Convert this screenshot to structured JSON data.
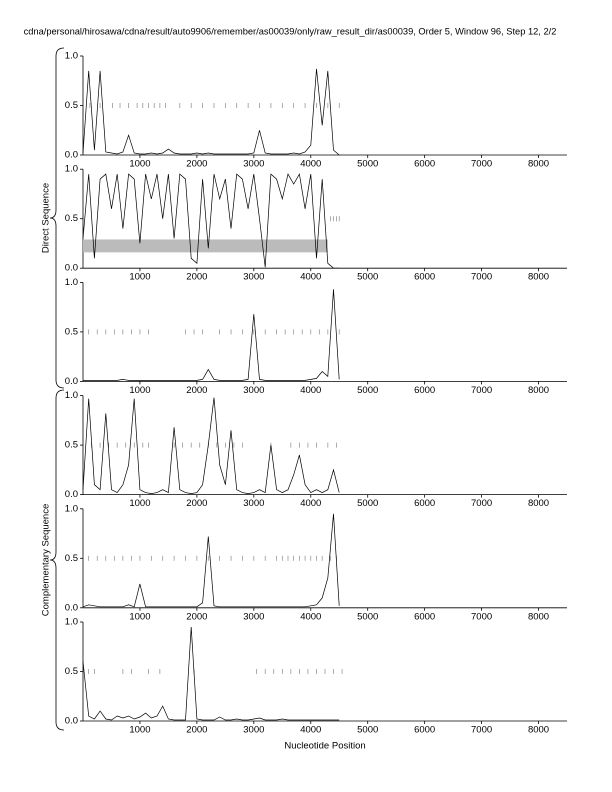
{
  "title": "cdna/personal/hirosawa/cdna/result/auto9906/remember/as00039/only/raw_result_dir/as00039, Order 5, Window 96, Step 12, 2/2",
  "xlabel": "Nucleotide Position",
  "groups": [
    {
      "label": "Direct Sequence"
    },
    {
      "label": "Complementary Sequence"
    }
  ],
  "chart_data": [
    {
      "type": "line",
      "color": "#000000",
      "x": [
        0,
        100,
        200,
        300,
        400,
        500,
        600,
        700,
        800,
        900,
        1000,
        1100,
        1200,
        1300,
        1400,
        1500,
        1600,
        1700,
        1800,
        1900,
        2000,
        2100,
        2200,
        2300,
        2400,
        2500,
        2600,
        2700,
        2800,
        2900,
        3000,
        3100,
        3200,
        3300,
        3400,
        3500,
        3600,
        3700,
        3800,
        3900,
        4000,
        4100,
        4200,
        4300,
        4400,
        4500
      ],
      "values": [
        0.02,
        0.85,
        0.05,
        0.85,
        0.03,
        0.02,
        0.01,
        0.03,
        0.2,
        0.02,
        0.01,
        0.01,
        0.02,
        0.01,
        0.02,
        0.06,
        0.02,
        0.01,
        0.01,
        0.01,
        0.02,
        0.01,
        0.02,
        0.01,
        0.01,
        0.01,
        0.01,
        0.01,
        0.01,
        0.01,
        0.02,
        0.25,
        0.02,
        0.01,
        0.01,
        0.01,
        0.01,
        0.02,
        0.01,
        0.03,
        0.1,
        0.87,
        0.3,
        0.85,
        0.05,
        0
      ],
      "rug": [
        120,
        300,
        520,
        650,
        800,
        950,
        1050,
        1150,
        1250,
        1350,
        1450,
        1700,
        1900,
        2100,
        2300,
        2500,
        2700,
        2900,
        3100,
        3300,
        3500,
        3700,
        3900,
        4100,
        4300,
        4500
      ],
      "xlim": [
        0,
        8500
      ],
      "ylim": [
        0,
        1
      ],
      "xticks": [
        1000,
        2000,
        3000,
        4000,
        5000,
        6000,
        7000,
        8000
      ],
      "yticks": [
        {
          "value": 0,
          "label": "0.0"
        },
        {
          "value": 0.5,
          "label": "0.5"
        },
        {
          "value": 1,
          "label": "1.0"
        }
      ]
    },
    {
      "type": "line",
      "color": "#000000",
      "x": [
        0,
        100,
        200,
        300,
        400,
        500,
        600,
        700,
        800,
        900,
        1000,
        1100,
        1200,
        1300,
        1400,
        1500,
        1600,
        1700,
        1800,
        1900,
        2000,
        2100,
        2200,
        2300,
        2400,
        2500,
        2600,
        2700,
        2800,
        2900,
        3000,
        3100,
        3200,
        3300,
        3400,
        3500,
        3600,
        3700,
        3800,
        3900,
        4000,
        4100,
        4200,
        4300,
        4400,
        4500
      ],
      "values": [
        0.3,
        0.95,
        0.1,
        0.9,
        0.95,
        0.6,
        0.95,
        0.4,
        0.95,
        0.9,
        0.25,
        0.95,
        0.7,
        0.95,
        0.5,
        0.95,
        0.3,
        0.95,
        0.9,
        0.1,
        0.05,
        0.9,
        0.2,
        0.95,
        0.7,
        0.9,
        0.4,
        0.95,
        0.9,
        0.6,
        0.95,
        0.5,
        0.01,
        0.95,
        0.9,
        0.7,
        0.95,
        0.85,
        0.95,
        0.6,
        0.95,
        0.1,
        0.9,
        0.05,
        0,
        0
      ],
      "rug": [
        4350,
        4400,
        4450,
        4500
      ],
      "band_x": [
        0,
        4300
      ],
      "band_y": [
        0.16,
        0.29
      ],
      "band_color": "#bbbbbb",
      "xlim": [
        0,
        8500
      ],
      "ylim": [
        0,
        1
      ],
      "xticks": [
        1000,
        2000,
        3000,
        4000,
        5000,
        6000,
        7000,
        8000
      ],
      "yticks": [
        {
          "value": 0,
          "label": "0.0"
        },
        {
          "value": 0.5,
          "label": "0.5"
        },
        {
          "value": 1,
          "label": "1.0"
        }
      ]
    },
    {
      "type": "line",
      "color": "#000000",
      "x": [
        0,
        100,
        200,
        300,
        400,
        500,
        600,
        700,
        800,
        900,
        1000,
        1100,
        1200,
        1300,
        1400,
        1500,
        1600,
        1700,
        1800,
        1900,
        2000,
        2100,
        2200,
        2300,
        2400,
        2500,
        2600,
        2700,
        2800,
        2900,
        3000,
        3100,
        3200,
        3300,
        3400,
        3500,
        3600,
        3700,
        3800,
        3900,
        4000,
        4100,
        4200,
        4300,
        4400,
        4500
      ],
      "values": [
        0.01,
        0.01,
        0.01,
        0.01,
        0.01,
        0.01,
        0.01,
        0.02,
        0.01,
        0.01,
        0.01,
        0.01,
        0.01,
        0.01,
        0.01,
        0.01,
        0.01,
        0.01,
        0.01,
        0.01,
        0.01,
        0.02,
        0.12,
        0.02,
        0.01,
        0.01,
        0.01,
        0.01,
        0.01,
        0.02,
        0.68,
        0.02,
        0.01,
        0.01,
        0.01,
        0.01,
        0.01,
        0.01,
        0.01,
        0.01,
        0.02,
        0.03,
        0.1,
        0.05,
        0.93,
        0.02
      ],
      "rug": [
        100,
        250,
        400,
        550,
        700,
        850,
        1000,
        1150,
        1800,
        1950,
        2100,
        2400,
        2600,
        2800,
        3000,
        3200,
        3400,
        3550,
        3700,
        3850,
        4000,
        4150,
        4300,
        4500
      ],
      "xlim": [
        0,
        8500
      ],
      "ylim": [
        0,
        1
      ],
      "xticks": [
        1000,
        2000,
        3000,
        4000,
        5000,
        6000,
        7000,
        8000
      ],
      "yticks": [
        {
          "value": 0,
          "label": "0.0"
        },
        {
          "value": 0.5,
          "label": "0.5"
        },
        {
          "value": 1,
          "label": "1.0"
        }
      ]
    },
    {
      "type": "line",
      "color": "#000000",
      "x": [
        0,
        100,
        200,
        300,
        400,
        500,
        600,
        700,
        800,
        900,
        1000,
        1100,
        1200,
        1300,
        1400,
        1500,
        1600,
        1700,
        1800,
        1900,
        2000,
        2100,
        2200,
        2300,
        2400,
        2500,
        2600,
        2700,
        2800,
        2900,
        3000,
        3100,
        3200,
        3300,
        3400,
        3500,
        3600,
        3700,
        3800,
        3900,
        4000,
        4100,
        4200,
        4300,
        4400,
        4500
      ],
      "values": [
        0.05,
        0.97,
        0.1,
        0.05,
        0.82,
        0.05,
        0.02,
        0.1,
        0.3,
        0.97,
        0.05,
        0.02,
        0.01,
        0.02,
        0.05,
        0.02,
        0.68,
        0.05,
        0.02,
        0.01,
        0.02,
        0.1,
        0.5,
        0.98,
        0.3,
        0.1,
        0.65,
        0.05,
        0.02,
        0.01,
        0.02,
        0.05,
        0.02,
        0.5,
        0.05,
        0.02,
        0.05,
        0.2,
        0.4,
        0.1,
        0.02,
        0.05,
        0.02,
        0.05,
        0.25,
        0.02
      ],
      "rug": [
        150,
        300,
        450,
        600,
        750,
        900,
        1050,
        1150,
        1600,
        1750,
        1900,
        2050,
        2200,
        2350,
        2500,
        2650,
        2800,
        3300,
        3650,
        3800,
        3950,
        4100,
        4300,
        4450
      ],
      "xlim": [
        0,
        8500
      ],
      "ylim": [
        0,
        1
      ],
      "xticks": [
        1000,
        2000,
        3000,
        4000,
        5000,
        6000,
        7000,
        8000
      ],
      "yticks": [
        {
          "value": 0,
          "label": "0.0"
        },
        {
          "value": 0.5,
          "label": "0.5"
        },
        {
          "value": 1,
          "label": "1.0"
        }
      ]
    },
    {
      "type": "line",
      "color": "#000000",
      "x": [
        0,
        100,
        200,
        300,
        400,
        500,
        600,
        700,
        800,
        900,
        1000,
        1100,
        1200,
        1300,
        1400,
        1500,
        1600,
        1700,
        1800,
        1900,
        2000,
        2100,
        2200,
        2300,
        2400,
        2500,
        2600,
        2700,
        2800,
        2900,
        3000,
        3100,
        3200,
        3300,
        3400,
        3500,
        3600,
        3700,
        3800,
        3900,
        4000,
        4100,
        4200,
        4300,
        4400,
        4500
      ],
      "values": [
        0.01,
        0.03,
        0.02,
        0.01,
        0.01,
        0.01,
        0.01,
        0.01,
        0.03,
        0.01,
        0.24,
        0.01,
        0.01,
        0.01,
        0.01,
        0.01,
        0.01,
        0.01,
        0.01,
        0.01,
        0.01,
        0.05,
        0.72,
        0.02,
        0.01,
        0.01,
        0.01,
        0.01,
        0.01,
        0.01,
        0.01,
        0.01,
        0.01,
        0.01,
        0.01,
        0.01,
        0.01,
        0.01,
        0.01,
        0.01,
        0.02,
        0.03,
        0.1,
        0.3,
        0.95,
        0.02
      ],
      "rug": [
        100,
        250,
        400,
        550,
        700,
        850,
        1000,
        1200,
        1400,
        1600,
        1800,
        2000,
        2200,
        2400,
        2600,
        2800,
        3000,
        3200,
        3400,
        3500,
        3600,
        3700,
        3800,
        3900,
        4000,
        4100,
        4200,
        4350,
        4450
      ],
      "xlim": [
        0,
        8500
      ],
      "ylim": [
        0,
        1
      ],
      "xticks": [
        1000,
        2000,
        3000,
        4000,
        5000,
        6000,
        7000,
        8000
      ],
      "yticks": [
        {
          "value": 0,
          "label": "0.0"
        },
        {
          "value": 0.5,
          "label": "0.5"
        },
        {
          "value": 1,
          "label": "1.0"
        }
      ]
    },
    {
      "type": "line",
      "color": "#000000",
      "x": [
        0,
        100,
        200,
        300,
        400,
        500,
        600,
        700,
        800,
        900,
        1000,
        1100,
        1200,
        1300,
        1400,
        1500,
        1600,
        1700,
        1800,
        1900,
        2000,
        2100,
        2200,
        2300,
        2400,
        2500,
        2600,
        2700,
        2800,
        2900,
        3000,
        3100,
        3200,
        3300,
        3400,
        3500,
        3600,
        3700,
        3800,
        3900,
        4000,
        4100,
        4200,
        4300,
        4400,
        4500
      ],
      "values": [
        0.6,
        0.05,
        0.02,
        0.1,
        0.02,
        0.01,
        0.05,
        0.03,
        0.05,
        0.02,
        0.04,
        0.08,
        0.03,
        0.05,
        0.15,
        0.02,
        0.01,
        0.01,
        0.01,
        0.95,
        0.02,
        0.01,
        0.01,
        0.01,
        0.04,
        0.01,
        0.01,
        0.02,
        0.01,
        0.01,
        0.02,
        0.03,
        0.01,
        0.01,
        0.01,
        0.02,
        0.01,
        0.01,
        0.01,
        0.01,
        0.01,
        0.01,
        0.01,
        0.01,
        0.01,
        0.01
      ],
      "rug": [
        100,
        200,
        700,
        850,
        1150,
        1350,
        1950,
        3050,
        3200,
        3350,
        3500,
        3650,
        3800,
        3950,
        4100,
        4250,
        4400,
        4550
      ],
      "xlim": [
        0,
        8500
      ],
      "ylim": [
        0,
        1
      ],
      "xticks": [
        1000,
        2000,
        3000,
        4000,
        5000,
        6000,
        7000,
        8000
      ],
      "yticks": [
        {
          "value": 0,
          "label": "0.0"
        },
        {
          "value": 0.5,
          "label": "0.5"
        },
        {
          "value": 1,
          "label": "1.0"
        }
      ]
    }
  ]
}
